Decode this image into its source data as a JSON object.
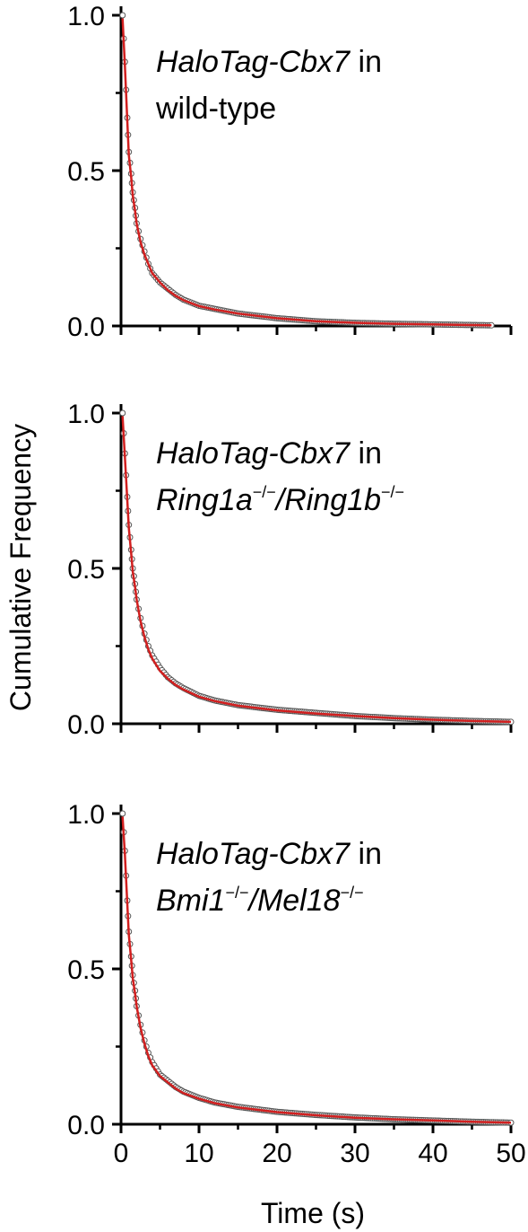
{
  "y_axis_title": "Cumulative Frequency",
  "x_axis_title": "Time (s)",
  "colors": {
    "fit": "#d11f1f",
    "points": "#555555",
    "axis": "#000000"
  },
  "chart_data": [
    {
      "type": "scatter",
      "annotation": {
        "gene": "HaloTag-Cbx7",
        "suffix": " in",
        "line2": "wild-type"
      },
      "xlim": [
        0,
        50
      ],
      "ylim": [
        0,
        1.0
      ],
      "xticks": [
        0,
        10,
        20,
        30,
        40,
        50
      ],
      "yticks": [
        "0.0",
        "0.5",
        "1.0"
      ],
      "series": [
        {
          "x": [
            0.2,
            0.5,
            0.8,
            1.0,
            1.3,
            1.5,
            1.8,
            2.0,
            2.5,
            3.0,
            3.5,
            4.0,
            5.0,
            6.0,
            7.0,
            8.0,
            10.0,
            12.0,
            15.0,
            20.0,
            25.0,
            30.0,
            35.0,
            40.0,
            45.0,
            47.5
          ],
          "y": [
            1.0,
            0.85,
            0.67,
            0.56,
            0.49,
            0.43,
            0.38,
            0.33,
            0.28,
            0.24,
            0.2,
            0.17,
            0.14,
            0.12,
            0.1,
            0.085,
            0.065,
            0.055,
            0.04,
            0.025,
            0.015,
            0.01,
            0.007,
            0.005,
            0.003,
            0.002
          ]
        },
        {
          "x": [
            0.2,
            0.5,
            0.8,
            1.0,
            1.3,
            1.5,
            1.8,
            2.0,
            2.5,
            3.0,
            3.5,
            4.0,
            5.0,
            6.0,
            7.0,
            8.0,
            10.0,
            12.0,
            15.0,
            20.0,
            25.0,
            30.0,
            35.0,
            40.0,
            45.0,
            47.5
          ],
          "y": [
            0.99,
            0.84,
            0.66,
            0.55,
            0.48,
            0.42,
            0.37,
            0.33,
            0.27,
            0.23,
            0.2,
            0.17,
            0.14,
            0.115,
            0.097,
            0.083,
            0.064,
            0.053,
            0.04,
            0.025,
            0.015,
            0.01,
            0.007,
            0.005,
            0.003,
            0.002
          ]
        }
      ]
    },
    {
      "type": "scatter",
      "annotation": {
        "gene": "HaloTag-Cbx7",
        "suffix": " in",
        "line2a": "Ring1a",
        "line2b": "/Ring1b"
      },
      "xlim": [
        0,
        50
      ],
      "ylim": [
        0,
        1.0
      ],
      "xticks": [
        0,
        10,
        20,
        30,
        40,
        50
      ],
      "yticks": [
        "0.0",
        "0.5",
        "1.0"
      ],
      "series": [
        {
          "x": [
            0.2,
            0.5,
            0.8,
            1.0,
            1.3,
            1.5,
            1.8,
            2.0,
            2.5,
            3.0,
            3.5,
            4.0,
            5.0,
            6.0,
            7.0,
            8.0,
            10.0,
            12.0,
            15.0,
            20.0,
            25.0,
            30.0,
            35.0,
            40.0,
            45.0,
            50.0
          ],
          "y": [
            1.0,
            0.87,
            0.73,
            0.64,
            0.56,
            0.5,
            0.45,
            0.4,
            0.34,
            0.29,
            0.25,
            0.22,
            0.18,
            0.15,
            0.13,
            0.115,
            0.09,
            0.075,
            0.06,
            0.045,
            0.035,
            0.025,
            0.018,
            0.013,
            0.009,
            0.006
          ]
        },
        {
          "x": [
            0.2,
            0.5,
            0.8,
            1.0,
            1.3,
            1.5,
            1.8,
            2.0,
            2.5,
            3.0,
            3.5,
            4.0,
            5.0,
            6.0,
            7.0,
            8.0,
            10.0,
            12.0,
            15.0,
            20.0,
            25.0,
            30.0,
            35.0,
            40.0,
            45.0,
            50.0
          ],
          "y": [
            0.99,
            0.86,
            0.72,
            0.63,
            0.55,
            0.49,
            0.44,
            0.4,
            0.33,
            0.28,
            0.24,
            0.21,
            0.17,
            0.145,
            0.125,
            0.11,
            0.087,
            0.073,
            0.058,
            0.043,
            0.033,
            0.025,
            0.018,
            0.013,
            0.009,
            0.006
          ]
        }
      ]
    },
    {
      "type": "scatter",
      "annotation": {
        "gene": "HaloTag-Cbx7",
        "suffix": " in",
        "line2a": "Bmi1",
        "line2b": "/Mel18"
      },
      "xlim": [
        0,
        50
      ],
      "ylim": [
        0,
        1.0
      ],
      "xticks": [
        0,
        10,
        20,
        30,
        40,
        50
      ],
      "yticks": [
        "0.0",
        "0.5",
        "1.0"
      ],
      "series": [
        {
          "x": [
            0.2,
            0.5,
            0.8,
            1.0,
            1.3,
            1.5,
            1.8,
            2.0,
            2.5,
            3.0,
            3.5,
            4.0,
            5.0,
            6.0,
            7.0,
            8.0,
            10.0,
            12.0,
            15.0,
            20.0,
            25.0,
            30.0,
            35.0,
            40.0,
            45.0,
            50.0
          ],
          "y": [
            1.0,
            0.88,
            0.72,
            0.62,
            0.54,
            0.48,
            0.43,
            0.38,
            0.32,
            0.27,
            0.23,
            0.2,
            0.16,
            0.14,
            0.12,
            0.105,
            0.085,
            0.07,
            0.056,
            0.04,
            0.03,
            0.022,
            0.016,
            0.012,
            0.008,
            0.005
          ]
        },
        {
          "x": [
            0.2,
            0.5,
            0.8,
            1.0,
            1.3,
            1.5,
            1.8,
            2.0,
            2.5,
            3.0,
            3.5,
            4.0,
            5.0,
            6.0,
            7.0,
            8.0,
            10.0,
            12.0,
            15.0,
            20.0,
            25.0,
            30.0,
            35.0,
            40.0,
            45.0,
            50.0
          ],
          "y": [
            0.99,
            0.87,
            0.71,
            0.61,
            0.53,
            0.47,
            0.42,
            0.38,
            0.31,
            0.26,
            0.22,
            0.19,
            0.155,
            0.135,
            0.115,
            0.1,
            0.082,
            0.068,
            0.054,
            0.039,
            0.029,
            0.021,
            0.016,
            0.012,
            0.008,
            0.005
          ]
        }
      ]
    }
  ]
}
